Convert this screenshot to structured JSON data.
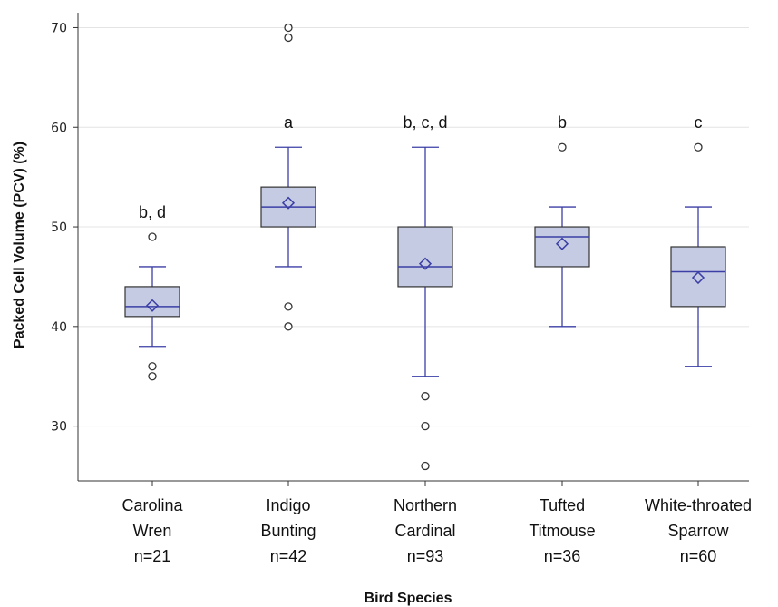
{
  "chart_data": {
    "type": "box",
    "title": "",
    "xlabel": "Bird Species",
    "ylabel": "Packed Cell Volume (PCV) (%)",
    "ylim": [
      24.5,
      71.5
    ],
    "yticks": [
      30,
      40,
      50,
      60,
      70
    ],
    "grid": "horizontal",
    "colors": {
      "box_fill": "#c5cbe2",
      "box_stroke": "#333333",
      "whisker": "#3b3fa6",
      "axis": "#333333",
      "grid": "#e4e4e4"
    },
    "categories": [
      {
        "line1": "Carolina",
        "line2": "Wren",
        "n": "n=21",
        "letters": "b, d",
        "min": 38,
        "q1": 41,
        "median": 42,
        "q3": 44,
        "max": 46,
        "mean": 42.1,
        "outliers": [
          49,
          36,
          35
        ]
      },
      {
        "line1": "Indigo",
        "line2": "Bunting",
        "n": "n=42",
        "letters": "a",
        "min": 46,
        "q1": 50,
        "median": 52,
        "q3": 54,
        "max": 58,
        "mean": 52.4,
        "outliers": [
          70,
          69,
          42,
          40
        ]
      },
      {
        "line1": "Northern",
        "line2": "Cardinal",
        "n": "n=93",
        "letters": "b, c, d",
        "min": 35,
        "q1": 44,
        "median": 46,
        "q3": 50,
        "max": 58,
        "mean": 46.3,
        "outliers": [
          33,
          30,
          26
        ]
      },
      {
        "line1": "Tufted",
        "line2": "Titmouse",
        "n": "n=36",
        "letters": "b",
        "min": 40,
        "q1": 46,
        "median": 49,
        "q3": 50,
        "max": 52,
        "mean": 48.3,
        "outliers": [
          58
        ]
      },
      {
        "line1": "White-throated",
        "line2": "Sparrow",
        "n": "n=60",
        "letters": "c",
        "min": 36,
        "q1": 42,
        "median": 45.5,
        "q3": 48,
        "max": 52,
        "mean": 44.9,
        "outliers": [
          58
        ]
      }
    ]
  }
}
